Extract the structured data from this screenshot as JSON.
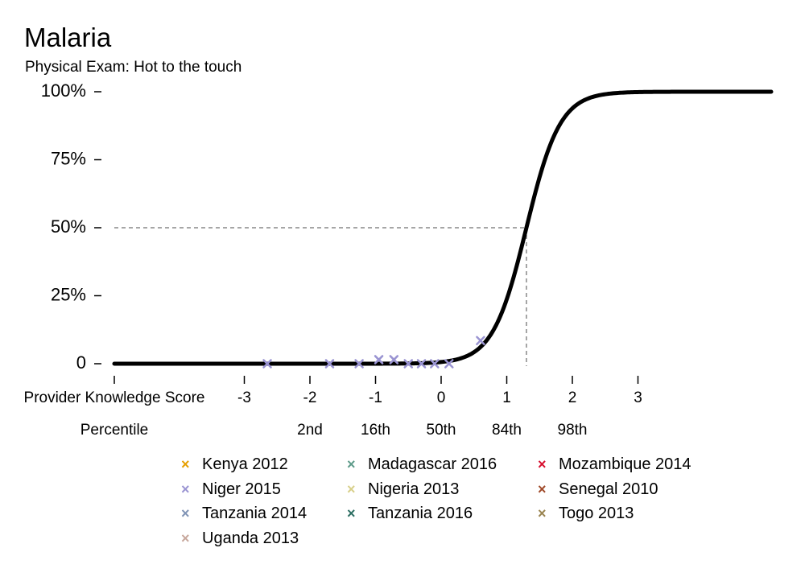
{
  "chart_data": {
    "type": "line",
    "title": "Malaria",
    "subtitle": "Physical Exam: Hot to the touch",
    "y_ticks": [
      "0",
      "25%",
      "50%",
      "75%",
      "100%"
    ],
    "y_tick_values": [
      0,
      25,
      50,
      75,
      100
    ],
    "ylim": [
      0,
      100
    ],
    "xlim": [
      -4,
      5
    ],
    "x_axis_label": "Provider Knowledge Score",
    "x_ticks": [
      "-3",
      "-2",
      "-1",
      "0",
      "1",
      "2",
      "3"
    ],
    "x_tick_values": [
      -3,
      -2,
      -1,
      0,
      1,
      2,
      3
    ],
    "percentile_label": "Percentile",
    "percentiles": [
      {
        "label": "2nd",
        "x": -2
      },
      {
        "label": "16th",
        "x": -1
      },
      {
        "label": "50th",
        "x": 0
      },
      {
        "label": "84th",
        "x": 1
      },
      {
        "label": "98th",
        "x": 2
      }
    ],
    "curve": {
      "type": "logistic",
      "midpoint": 1.3,
      "slope": 3.9,
      "color": "#000000"
    },
    "reference": {
      "x": 1.3,
      "y": 50
    },
    "points": [
      {
        "series": "Niger 2015",
        "x": -2.65,
        "y": 0
      },
      {
        "series": "Niger 2015",
        "x": -1.7,
        "y": 0
      },
      {
        "series": "Niger 2015",
        "x": -1.25,
        "y": 0
      },
      {
        "series": "Niger 2015",
        "x": -0.95,
        "y": 1.5
      },
      {
        "series": "Niger 2015",
        "x": -0.72,
        "y": 1.5
      },
      {
        "series": "Niger 2015",
        "x": -0.5,
        "y": 0
      },
      {
        "series": "Niger 2015",
        "x": -0.3,
        "y": 0
      },
      {
        "series": "Niger 2015",
        "x": -0.1,
        "y": 0
      },
      {
        "series": "Niger 2015",
        "x": 0.12,
        "y": 0
      },
      {
        "series": "Niger 2015",
        "x": 0.6,
        "y": 8.5
      }
    ],
    "legend": [
      {
        "name": "Kenya 2012",
        "color": "#E69F00"
      },
      {
        "name": "Madagascar 2016",
        "color": "#5E9B8A"
      },
      {
        "name": "Mozambique 2014",
        "color": "#D7102F"
      },
      {
        "name": "Niger 2015",
        "color": "#9A94D2"
      },
      {
        "name": "Nigeria 2013",
        "color": "#D8D08A"
      },
      {
        "name": "Senegal 2010",
        "color": "#A04A2A"
      },
      {
        "name": "Tanzania 2014",
        "color": "#7F93B5"
      },
      {
        "name": "Tanzania 2016",
        "color": "#2C6E62"
      },
      {
        "name": "Togo 2013",
        "color": "#9A8450"
      },
      {
        "name": "Uganda 2013",
        "color": "#C7A79C"
      }
    ]
  }
}
